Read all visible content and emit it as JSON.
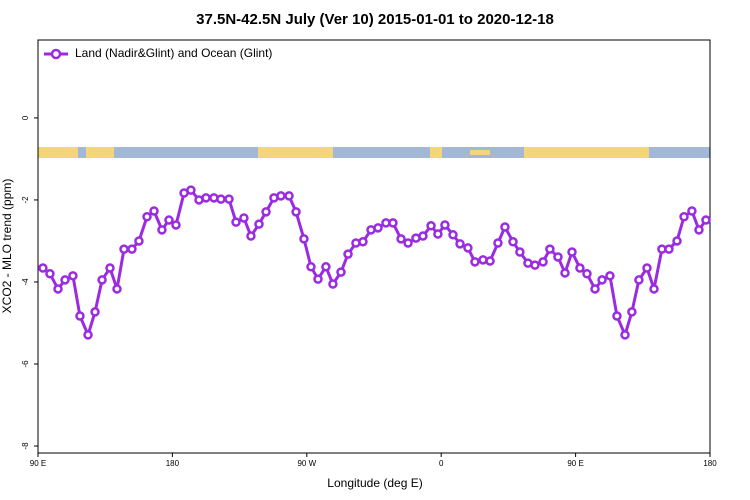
{
  "chart_data": {
    "type": "line",
    "title": "37.5N-42.5N July (Ver 10)   2015-01-01 to 2020-12-18",
    "xlabel": "Longitude (deg E)",
    "ylabel": "XCO2 - MLO trend (ppm)",
    "x": [
      93.3,
      98.0,
      103.4,
      108.1,
      113.4,
      118.1,
      123.5,
      128.2,
      132.9,
      138.2,
      142.9,
      147.6,
      152.9,
      157.6,
      163.0,
      167.7,
      173.0,
      177.7,
      182.4,
      187.8,
      192.4,
      197.8,
      202.5,
      207.8,
      212.5,
      217.9,
      222.6,
      227.9,
      232.6,
      238.0,
      242.7,
      248.0,
      252.7,
      258.1,
      262.8,
      268.1,
      272.8,
      277.5,
      282.8,
      287.5,
      292.9,
      297.6,
      302.9,
      307.6,
      313.0,
      317.7,
      323.0,
      327.7,
      333.1,
      337.8,
      343.1,
      347.8,
      353.2,
      357.8,
      362.5,
      367.9,
      372.6,
      377.9,
      382.6,
      388.0,
      392.7,
      398.0,
      402.7,
      408.1,
      412.7,
      418.1,
      422.8,
      428.2,
      432.8,
      438.2,
      442.9,
      447.6,
      452.9,
      457.6,
      463.0,
      467.7,
      473.0,
      477.7,
      483.1,
      487.7,
      492.4,
      497.8,
      502.5,
      507.8,
      512.5,
      517.9,
      522.6,
      527.9,
      532.6,
      537.3
    ],
    "series": [
      {
        "name": "Land (Nadir&Glint) and Ocean (Glint)",
        "color": "#9b2be0",
        "values": [
          -3.66,
          -3.8,
          -4.17,
          -3.95,
          -3.85,
          -4.83,
          -5.29,
          -4.73,
          -3.95,
          -3.66,
          -4.17,
          -3.2,
          -3.2,
          -3.0,
          -2.41,
          -2.27,
          -2.73,
          -2.49,
          -2.61,
          -1.83,
          -1.76,
          -2.0,
          -1.95,
          -1.95,
          -1.98,
          -1.98,
          -2.54,
          -2.44,
          -2.88,
          -2.59,
          -2.29,
          -1.95,
          -1.9,
          -1.9,
          -2.29,
          -2.95,
          -3.63,
          -3.93,
          -3.63,
          -4.05,
          -3.76,
          -3.32,
          -3.05,
          -3.02,
          -2.73,
          -2.68,
          -2.56,
          -2.56,
          -2.95,
          -3.05,
          -2.93,
          -2.88,
          -2.63,
          -2.83,
          -2.61,
          -2.85,
          -3.07,
          -3.17,
          -3.51,
          -3.46,
          -3.49,
          -3.05,
          -2.66,
          -3.02,
          -3.27,
          -3.54,
          -3.59,
          -3.51,
          -3.2,
          -3.39,
          -3.78,
          -3.27,
          -3.66,
          -3.8,
          -4.17,
          -3.95,
          -3.85,
          -4.83,
          -5.29,
          -4.73,
          -3.95,
          -3.66,
          -4.17,
          -3.2,
          -3.2,
          -3.0,
          -2.41,
          -2.27,
          -2.73,
          -2.49
        ]
      }
    ],
    "xlim": [
      90,
      540
    ],
    "xticks": [
      {
        "value": 90,
        "label": "90 E"
      },
      180,
      {
        "value": 270,
        "label": "90 W"
      },
      {
        "value": 360,
        "label": "0"
      },
      {
        "value": 450,
        "label": "90 E"
      },
      {
        "value": 540,
        "label": "180"
      }
    ],
    "ylim": [
      -8.17,
      1.9
    ],
    "yticks": [
      0,
      -2,
      -4,
      -6,
      -8
    ],
    "legend": "upper left"
  }
}
